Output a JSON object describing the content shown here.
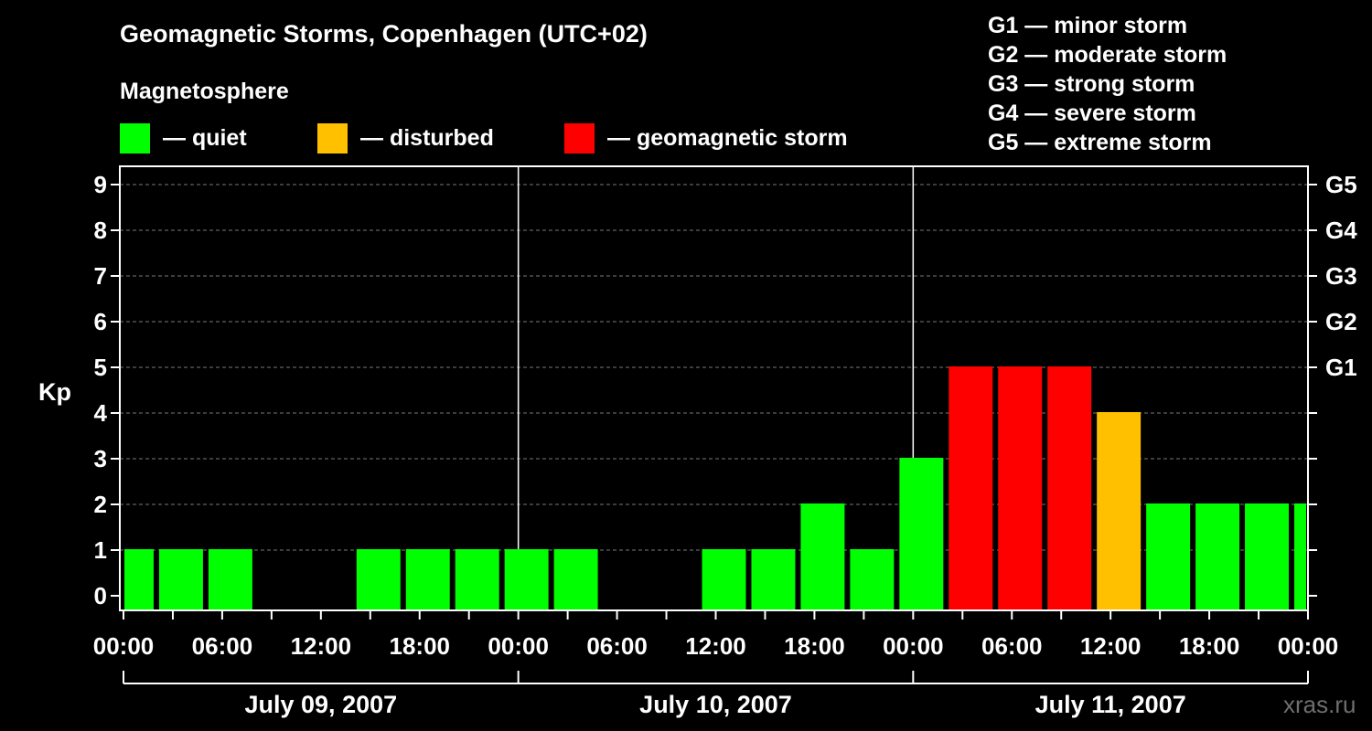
{
  "title": "Geomagnetic Storms, Copenhagen (UTC+02)",
  "subtitle": "Magnetosphere",
  "legend": [
    {
      "label": "— quiet",
      "color": "#00ff00"
    },
    {
      "label": "— disturbed",
      "color": "#ffc000"
    },
    {
      "label": "— geomagnetic storm",
      "color": "#ff0000"
    }
  ],
  "g_levels": [
    "G1 — minor storm",
    "G2 — moderate storm",
    "G3 — strong storm",
    "G4 — severe storm",
    "G5 — extreme storm"
  ],
  "watermark": "xras.ru",
  "chart_data": {
    "type": "bar",
    "title": "Geomagnetic Storms, Copenhagen (UTC+02)",
    "ylabel": "Kp",
    "ylim": [
      0,
      9
    ],
    "yticks": [
      "0",
      "1",
      "2",
      "3",
      "4",
      "5",
      "6",
      "7",
      "8",
      "9"
    ],
    "right_ticks": [
      {
        "kp": 5,
        "label": "G1"
      },
      {
        "kp": 6,
        "label": "G2"
      },
      {
        "kp": 7,
        "label": "G3"
      },
      {
        "kp": 8,
        "label": "G4"
      },
      {
        "kp": 9,
        "label": "G5"
      }
    ],
    "x_range_hours": [
      0,
      72
    ],
    "xticks": [
      "00:00",
      "06:00",
      "12:00",
      "18:00",
      "00:00",
      "06:00",
      "12:00",
      "18:00",
      "00:00",
      "06:00",
      "12:00",
      "18:00",
      "00:00"
    ],
    "days": [
      "July 09, 2007",
      "July 10, 2007",
      "July 11, 2007"
    ],
    "bars": [
      {
        "start": 0,
        "end": 2,
        "kp": 1,
        "level": "quiet"
      },
      {
        "start": 2,
        "end": 5,
        "kp": 1,
        "level": "quiet"
      },
      {
        "start": 5,
        "end": 8,
        "kp": 1,
        "level": "quiet"
      },
      {
        "start": 8,
        "end": 11,
        "kp": 0,
        "level": "quiet"
      },
      {
        "start": 11,
        "end": 14,
        "kp": 0,
        "level": "quiet"
      },
      {
        "start": 14,
        "end": 17,
        "kp": 1,
        "level": "quiet"
      },
      {
        "start": 17,
        "end": 20,
        "kp": 1,
        "level": "quiet"
      },
      {
        "start": 20,
        "end": 23,
        "kp": 1,
        "level": "quiet"
      },
      {
        "start": 23,
        "end": 26,
        "kp": 1,
        "level": "quiet"
      },
      {
        "start": 26,
        "end": 29,
        "kp": 1,
        "level": "quiet"
      },
      {
        "start": 29,
        "end": 32,
        "kp": 0,
        "level": "quiet"
      },
      {
        "start": 32,
        "end": 35,
        "kp": 0,
        "level": "quiet"
      },
      {
        "start": 35,
        "end": 38,
        "kp": 1,
        "level": "quiet"
      },
      {
        "start": 38,
        "end": 41,
        "kp": 1,
        "level": "quiet"
      },
      {
        "start": 41,
        "end": 44,
        "kp": 2,
        "level": "quiet"
      },
      {
        "start": 44,
        "end": 47,
        "kp": 1,
        "level": "quiet"
      },
      {
        "start": 47,
        "end": 50,
        "kp": 3,
        "level": "quiet"
      },
      {
        "start": 50,
        "end": 53,
        "kp": 5,
        "level": "storm"
      },
      {
        "start": 53,
        "end": 56,
        "kp": 5,
        "level": "storm"
      },
      {
        "start": 56,
        "end": 59,
        "kp": 5,
        "level": "storm"
      },
      {
        "start": 59,
        "end": 62,
        "kp": 4,
        "level": "disturbed"
      },
      {
        "start": 62,
        "end": 65,
        "kp": 2,
        "level": "quiet"
      },
      {
        "start": 65,
        "end": 68,
        "kp": 2,
        "level": "quiet"
      },
      {
        "start": 68,
        "end": 71,
        "kp": 2,
        "level": "quiet"
      },
      {
        "start": 71,
        "end": 72,
        "kp": 2,
        "level": "quiet"
      }
    ],
    "colors": {
      "quiet": "#00ff00",
      "disturbed": "#ffc000",
      "storm": "#ff0000"
    }
  }
}
